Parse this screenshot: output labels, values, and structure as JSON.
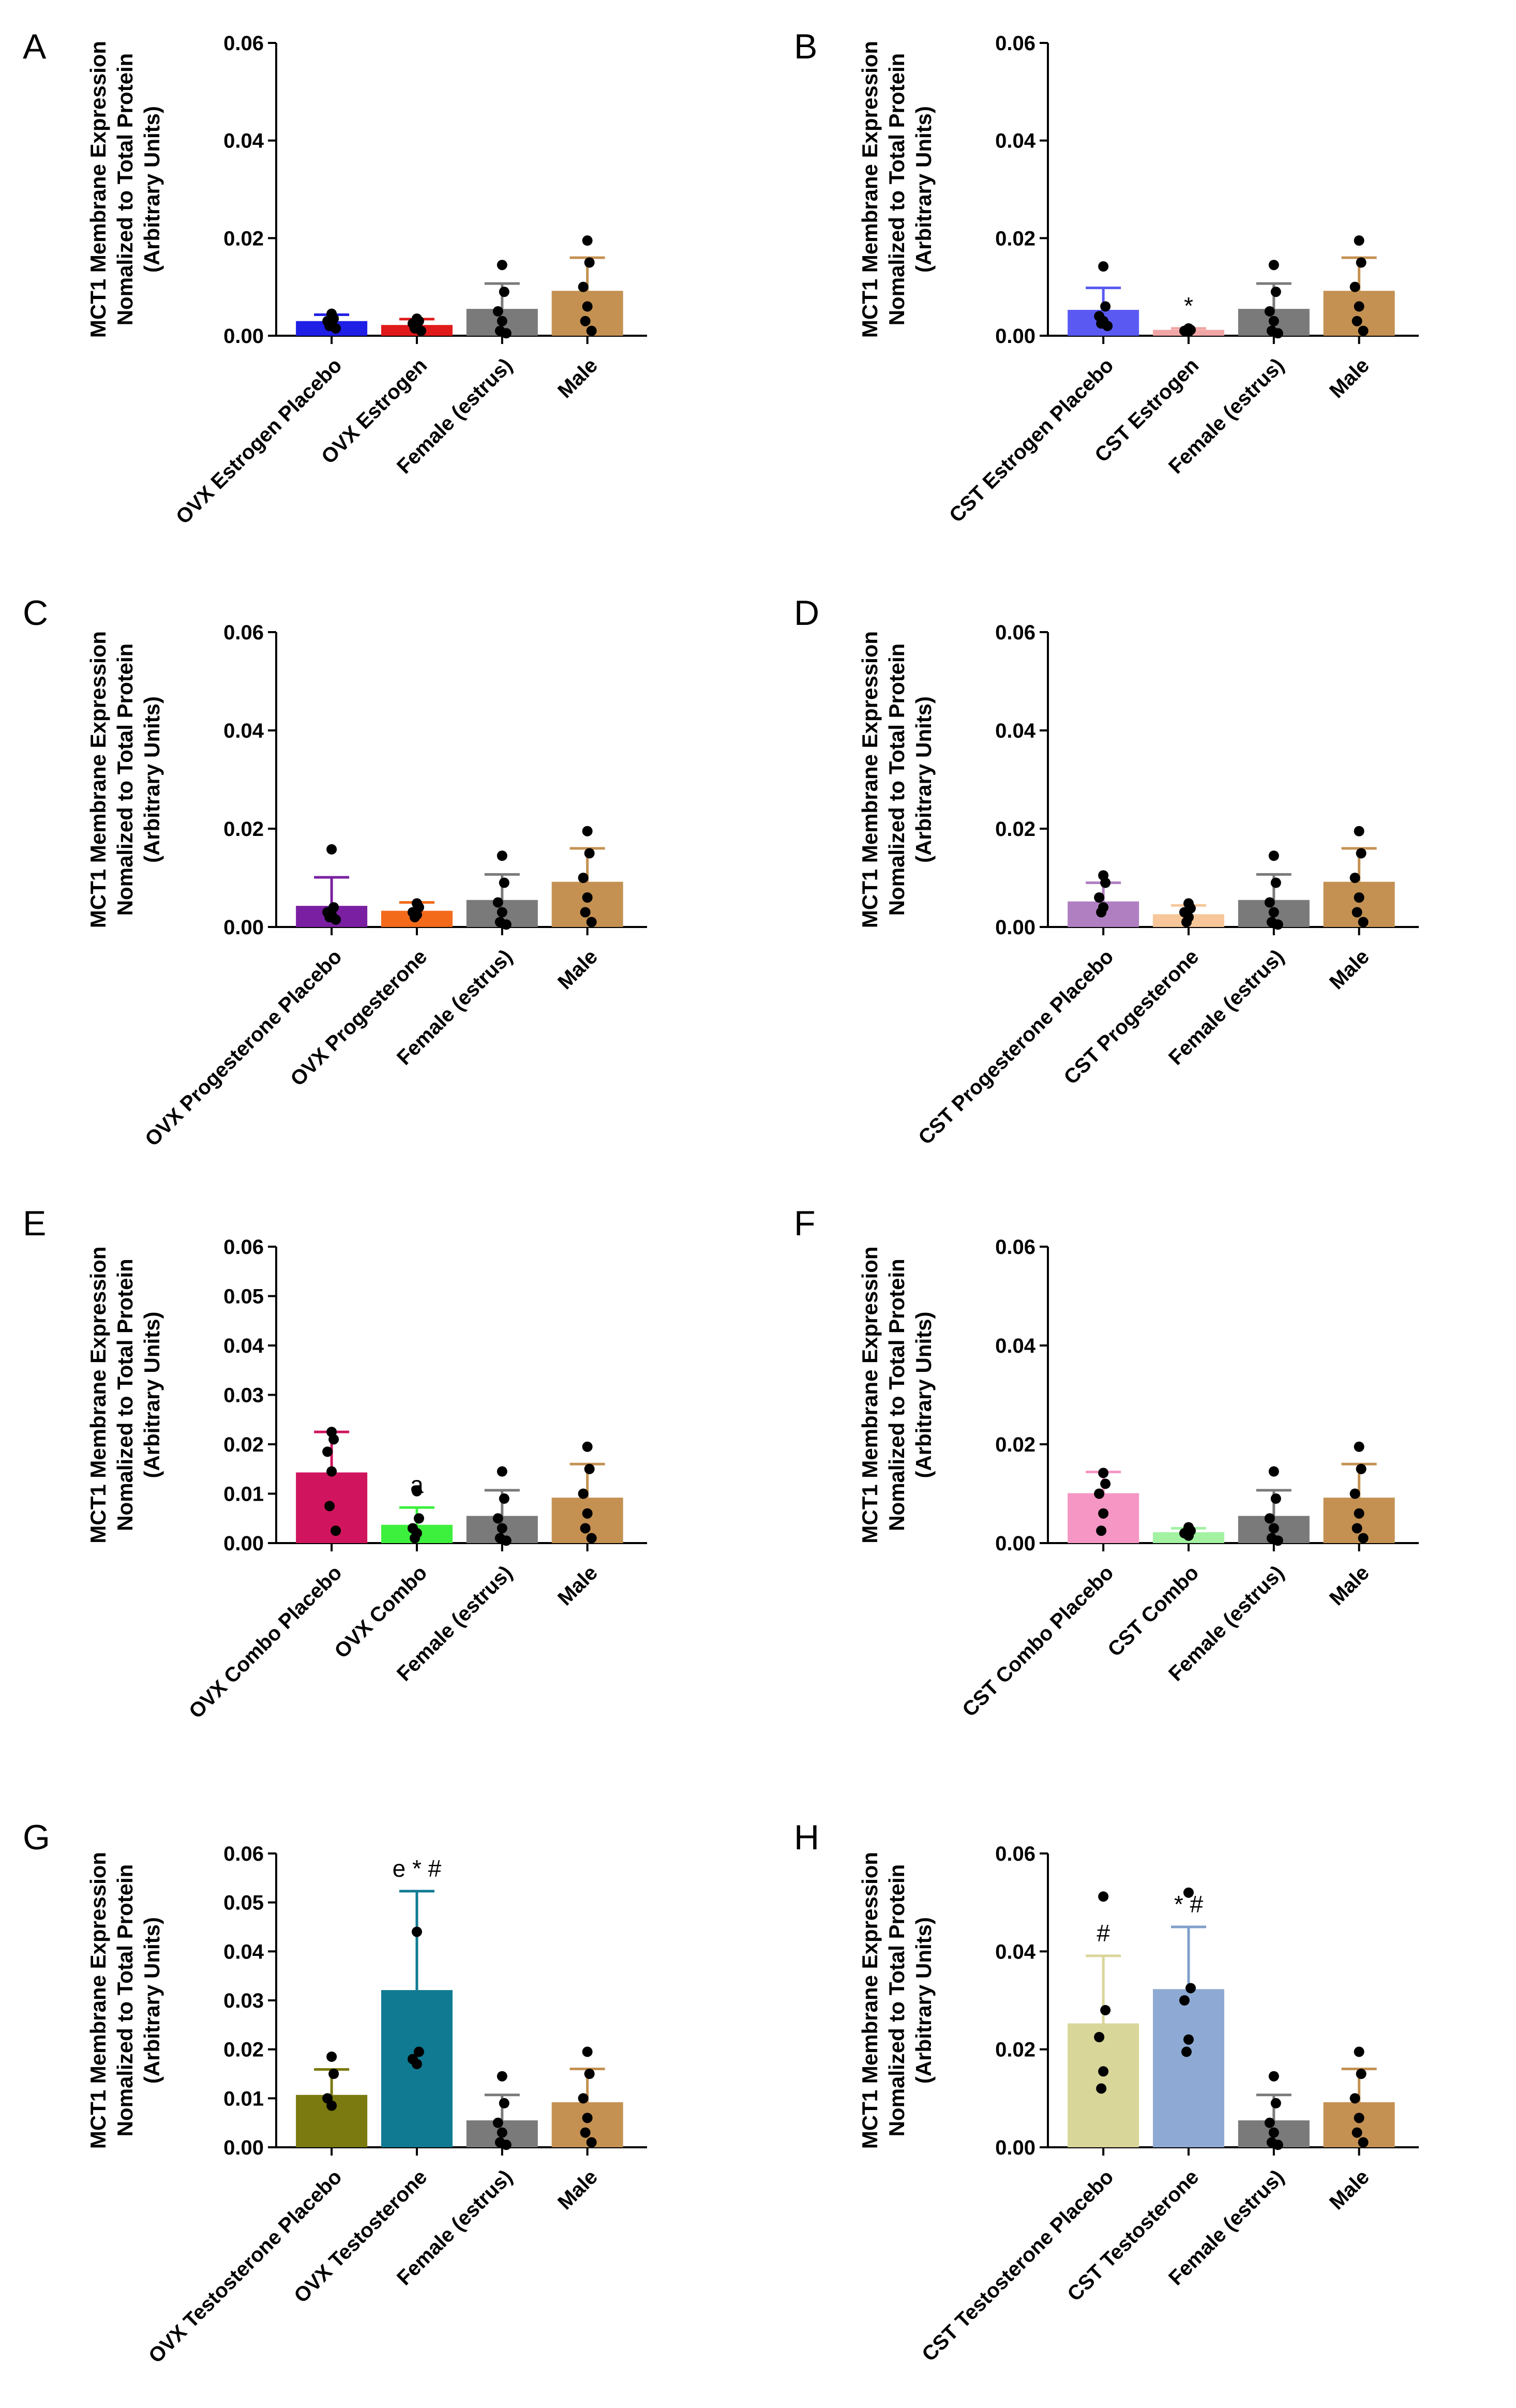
{
  "colors": {
    "axis": "#000000",
    "point": "#000000"
  },
  "chart_data": [
    {
      "panel": "A",
      "type": "bar",
      "ylabel": [
        "MCT1 Membrane Expression",
        "Nomalized to Total Protein",
        "(Arbitrary Units)"
      ],
      "ylim": [
        0,
        0.06
      ],
      "yticks": [
        "0.00",
        "0.02",
        "0.04",
        "0.06"
      ],
      "categories": [
        "OVX Estrogen Placebo",
        "OVX Estrogen",
        "Female (estrus)",
        "Male"
      ],
      "values": [
        0.003,
        0.0022,
        0.0055,
        0.0092
      ],
      "errors": [
        0.0013,
        0.0012,
        0.0052,
        0.0068
      ],
      "bar_colors": [
        "#1f1fe6",
        "#e01a1a",
        "#7a7a7a",
        "#c49152"
      ],
      "error_colors": [
        "#1f1fe6",
        "#e01a1a",
        "#7a7a7a",
        "#c49152"
      ],
      "points": [
        [
          0.0045,
          0.0035,
          0.003,
          0.0025,
          0.002,
          0.0015
        ],
        [
          0.0035,
          0.003,
          0.0025,
          0.002,
          0.0015,
          0.001
        ],
        [
          0.0145,
          0.009,
          0.005,
          0.003,
          0.001,
          0.0005
        ],
        [
          0.0195,
          0.015,
          0.01,
          0.006,
          0.003,
          0.001
        ]
      ],
      "annotations": [
        "",
        "",
        "",
        ""
      ]
    },
    {
      "panel": "B",
      "type": "bar",
      "ylabel": [
        "MCT1 Membrane Expression",
        "Nomalized to Total Protein",
        "(Arbitrary Units)"
      ],
      "ylim": [
        0,
        0.06
      ],
      "yticks": [
        "0.00",
        "0.02",
        "0.04",
        "0.06"
      ],
      "categories": [
        "CST Estrogen Placebo",
        "CST Estrogen",
        "Female (estrus)",
        "Male"
      ],
      "values": [
        0.0053,
        0.0012,
        0.0055,
        0.0092
      ],
      "errors": [
        0.0045,
        0.0003,
        0.0052,
        0.0068
      ],
      "bar_colors": [
        "#5a5af2",
        "#f2a5a5",
        "#7a7a7a",
        "#c49152"
      ],
      "error_colors": [
        "#5a5af2",
        "#f2a5a5",
        "#7a7a7a",
        "#c49152"
      ],
      "points": [
        [
          0.0142,
          0.006,
          0.004,
          0.003,
          0.0025,
          0.002
        ],
        [
          0.0015,
          0.0012,
          0.001,
          0.0008
        ],
        [
          0.0145,
          0.009,
          0.005,
          0.003,
          0.001,
          0.0005
        ],
        [
          0.0195,
          0.015,
          0.01,
          0.006,
          0.003,
          0.001
        ]
      ],
      "annotations": [
        "",
        "*",
        "",
        ""
      ]
    },
    {
      "panel": "C",
      "type": "bar",
      "ylabel": [
        "MCT1 Membrane Expression",
        "Nomalized to Total Protein",
        "(Arbitrary Units)"
      ],
      "ylim": [
        0,
        0.06
      ],
      "yticks": [
        "0.00",
        "0.02",
        "0.04",
        "0.06"
      ],
      "categories": [
        "OVX Progesterone Placebo",
        "OVX Progesterone",
        "Female (estrus)",
        "Male"
      ],
      "values": [
        0.0043,
        0.0033,
        0.0055,
        0.0092
      ],
      "errors": [
        0.0058,
        0.0017,
        0.0052,
        0.0068
      ],
      "bar_colors": [
        "#7a1fa2",
        "#f26a1a",
        "#7a7a7a",
        "#c49152"
      ],
      "error_colors": [
        "#7a1fa2",
        "#f26a1a",
        "#7a7a7a",
        "#c49152"
      ],
      "points": [
        [
          0.0158,
          0.004,
          0.003,
          0.0025,
          0.002,
          0.0015
        ],
        [
          0.0048,
          0.004,
          0.003,
          0.0025,
          0.002
        ],
        [
          0.0145,
          0.009,
          0.005,
          0.003,
          0.001,
          0.0005
        ],
        [
          0.0195,
          0.015,
          0.01,
          0.006,
          0.003,
          0.001
        ]
      ],
      "annotations": [
        "",
        "",
        "",
        ""
      ]
    },
    {
      "panel": "D",
      "type": "bar",
      "ylabel": [
        "MCT1 Membrane Expression",
        "Nomalized to Total Protein",
        "(Arbitrary Units)"
      ],
      "ylim": [
        0,
        0.06
      ],
      "yticks": [
        "0.00",
        "0.02",
        "0.04",
        "0.06"
      ],
      "categories": [
        "CST Progesterone Placebo",
        "CST Progesterone",
        "Female (estrus)",
        "Male"
      ],
      "values": [
        0.0052,
        0.0026,
        0.0055,
        0.0092
      ],
      "errors": [
        0.0038,
        0.0018,
        0.0052,
        0.0068
      ],
      "bar_colors": [
        "#b07fc2",
        "#f7c79a",
        "#7a7a7a",
        "#c49152"
      ],
      "error_colors": [
        "#b07fc2",
        "#f7c79a",
        "#7a7a7a",
        "#c49152"
      ],
      "points": [
        [
          0.0105,
          0.009,
          0.006,
          0.004,
          0.003
        ],
        [
          0.0048,
          0.0038,
          0.003,
          0.002,
          0.001
        ],
        [
          0.0145,
          0.009,
          0.005,
          0.003,
          0.001,
          0.0005
        ],
        [
          0.0195,
          0.015,
          0.01,
          0.006,
          0.003,
          0.001
        ]
      ],
      "annotations": [
        "",
        "",
        "",
        ""
      ]
    },
    {
      "panel": "E",
      "type": "bar",
      "ylabel": [
        "MCT1 Membrane Expression",
        "Nomalized to Total Protein",
        "(Arbitrary Units)"
      ],
      "ylim": [
        0,
        0.06
      ],
      "yticks": [
        "0.00",
        "0.01",
        "0.02",
        "0.03",
        "0.04",
        "0.05",
        "0.06"
      ],
      "categories": [
        "OVX Combo Placebo",
        "OVX Combo",
        "Female (estrus)",
        "Male"
      ],
      "values": [
        0.0143,
        0.0037,
        0.0055,
        0.0092
      ],
      "errors": [
        0.0082,
        0.0035,
        0.0052,
        0.0068
      ],
      "bar_colors": [
        "#d0155e",
        "#3df03d",
        "#7a7a7a",
        "#c49152"
      ],
      "error_colors": [
        "#d0155e",
        "#3df03d",
        "#7a7a7a",
        "#c49152"
      ],
      "points": [
        [
          0.0225,
          0.021,
          0.0185,
          0.0145,
          0.0075,
          0.0025
        ],
        [
          0.0105,
          0.005,
          0.003,
          0.002,
          0.001
        ],
        [
          0.0145,
          0.009,
          0.005,
          0.003,
          0.001,
          0.0005
        ],
        [
          0.0195,
          0.015,
          0.01,
          0.006,
          0.003,
          0.001
        ]
      ],
      "annotations": [
        "",
        "a",
        "",
        ""
      ]
    },
    {
      "panel": "F",
      "type": "bar",
      "ylabel": [
        "MCT1 Membrane Expression",
        "Nomalized to Total Protein",
        "(Arbitrary Units)"
      ],
      "ylim": [
        0,
        0.06
      ],
      "yticks": [
        "0.00",
        "0.02",
        "0.04",
        "0.06"
      ],
      "categories": [
        "CST Combo Placebo",
        "CST Combo",
        "Female (estrus)",
        "Male"
      ],
      "values": [
        0.0101,
        0.0022,
        0.0055,
        0.0092
      ],
      "errors": [
        0.0043,
        0.0008,
        0.0052,
        0.0068
      ],
      "bar_colors": [
        "#f596c4",
        "#a2f2a2",
        "#7a7a7a",
        "#c49152"
      ],
      "error_colors": [
        "#f596c4",
        "#a2f2a2",
        "#7a7a7a",
        "#c49152"
      ],
      "points": [
        [
          0.0142,
          0.012,
          0.01,
          0.006,
          0.0025
        ],
        [
          0.0032,
          0.0025,
          0.002,
          0.0015
        ],
        [
          0.0145,
          0.009,
          0.005,
          0.003,
          0.001,
          0.0005
        ],
        [
          0.0195,
          0.015,
          0.01,
          0.006,
          0.003,
          0.001
        ]
      ],
      "annotations": [
        "",
        "",
        "",
        ""
      ]
    },
    {
      "panel": "G",
      "type": "bar",
      "ylabel": [
        "MCT1 Membrane Expression",
        "Nomalized to Total Protein",
        "(Arbitrary Units)"
      ],
      "ylim": [
        0,
        0.06
      ],
      "yticks": [
        "0.00",
        "0.01",
        "0.02",
        "0.03",
        "0.04",
        "0.05",
        "0.06"
      ],
      "categories": [
        "OVX Testosterone Placebo",
        "OVX Testosterone",
        "Female (estrus)",
        "Male"
      ],
      "values": [
        0.0107,
        0.0321,
        0.0055,
        0.0092
      ],
      "errors": [
        0.0052,
        0.0202,
        0.0052,
        0.0068
      ],
      "bar_colors": [
        "#7a7a10",
        "#107a92",
        "#7a7a7a",
        "#c49152"
      ],
      "error_colors": [
        "#7a7a10",
        "#107a92",
        "#7a7a7a",
        "#c49152"
      ],
      "points": [
        [
          0.0185,
          0.015,
          0.01,
          0.0085
        ],
        [
          0.044,
          0.0195,
          0.018,
          0.017
        ],
        [
          0.0145,
          0.009,
          0.005,
          0.003,
          0.001,
          0.0005
        ],
        [
          0.0195,
          0.015,
          0.01,
          0.006,
          0.003,
          0.001
        ]
      ],
      "annotations": [
        "",
        "e * #",
        "",
        ""
      ]
    },
    {
      "panel": "H",
      "type": "bar",
      "ylabel": [
        "MCT1 Membrane Expression",
        "Nomalized to Total Protein",
        "(Arbitrary Units)"
      ],
      "ylim": [
        0,
        0.06
      ],
      "yticks": [
        "0.00",
        "0.02",
        "0.04",
        "0.06"
      ],
      "categories": [
        "CST Testosterone Placebo",
        "CST Testosterone",
        "Female (estrus)",
        "Male"
      ],
      "values": [
        0.0253,
        0.0323,
        0.0055,
        0.0092
      ],
      "errors": [
        0.0138,
        0.0127,
        0.0052,
        0.0068
      ],
      "bar_colors": [
        "#d9d69a",
        "#8eaad4",
        "#7a7a7a",
        "#c49152"
      ],
      "error_colors": [
        "#d9d69a",
        "#7f9fc9",
        "#7a7a7a",
        "#c49152"
      ],
      "points": [
        [
          0.0512,
          0.028,
          0.0225,
          0.0155,
          0.012
        ],
        [
          0.052,
          0.0325,
          0.03,
          0.022,
          0.0195
        ],
        [
          0.0145,
          0.009,
          0.005,
          0.003,
          0.001,
          0.0005
        ],
        [
          0.0195,
          0.015,
          0.01,
          0.006,
          0.003,
          0.001
        ]
      ],
      "annotations": [
        "#",
        "* #",
        "",
        ""
      ]
    }
  ]
}
